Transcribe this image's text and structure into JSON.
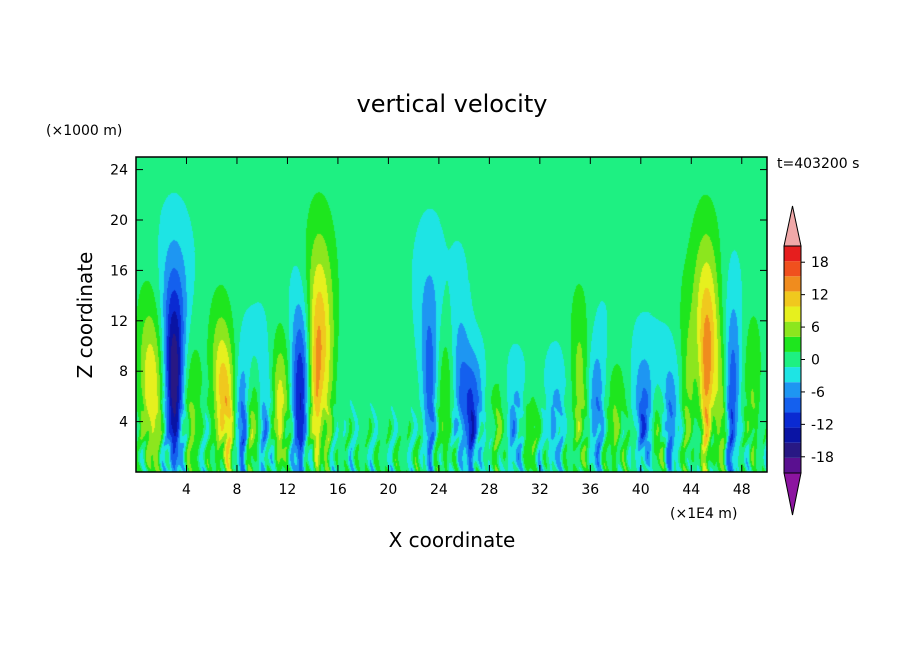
{
  "chart_data": {
    "type": "heatmap",
    "title": "vertical velocity",
    "xlabel": "X coordinate",
    "ylabel": "Z coordinate",
    "x_units": "(×1E4 m)",
    "y_units": "(×1000 m)",
    "time_label": "t=403200 s",
    "xlim": [
      0,
      50
    ],
    "ylim": [
      0,
      25
    ],
    "x_ticks": [
      4,
      8,
      12,
      16,
      20,
      24,
      28,
      32,
      36,
      40,
      44,
      48
    ],
    "y_ticks": [
      4,
      8,
      12,
      16,
      20,
      24
    ],
    "colorbar": {
      "levels": [
        -21,
        -18,
        -15,
        -12,
        -9,
        -6,
        -3,
        0,
        3,
        6,
        9,
        12,
        15,
        18,
        21
      ],
      "tick_values": [
        -18,
        -12,
        -6,
        0,
        6,
        12,
        18
      ],
      "colors": [
        "#5a1090",
        "#281884",
        "#0a14a4",
        "#0a2ad2",
        "#1460ee",
        "#1e96f2",
        "#1ee4e4",
        "#1ef082",
        "#1ee61e",
        "#8ce61e",
        "#e6f01e",
        "#f0c81e",
        "#f08c1e",
        "#f0501e",
        "#e61e1e"
      ],
      "under_color": "#8c14a0",
      "over_color": "#f0a8a8"
    },
    "background_value": 1,
    "features": [
      {
        "x": 0.8,
        "z_top": 18,
        "amp": 6
      },
      {
        "x": 1.5,
        "z_top": 16,
        "amp": 8
      },
      {
        "x": 2.8,
        "z_top": 21,
        "amp": -9
      },
      {
        "x": 3.2,
        "z_top": 20,
        "amp": -12
      },
      {
        "x": 4.5,
        "z_top": 14,
        "amp": 5
      },
      {
        "x": 6.6,
        "z_top": 18,
        "amp": 7
      },
      {
        "x": 7.3,
        "z_top": 14,
        "amp": 11
      },
      {
        "x": 8.5,
        "z_top": 14,
        "amp": -10
      },
      {
        "x": 9.2,
        "z_top": 12,
        "amp": 8
      },
      {
        "x": 10.2,
        "z_top": 16,
        "amp": -6
      },
      {
        "x": 11.4,
        "z_top": 14,
        "amp": 10
      },
      {
        "x": 13.0,
        "z_top": 18,
        "amp": -13
      },
      {
        "x": 14.3,
        "z_top": 23,
        "amp": 14
      },
      {
        "x": 15.2,
        "z_top": 22,
        "amp": 7
      },
      {
        "x": 23.3,
        "z_top": 21,
        "amp": -9
      },
      {
        "x": 24.5,
        "z_top": 16,
        "amp": 5
      },
      {
        "x": 25.6,
        "z_top": 21,
        "amp": -5
      },
      {
        "x": 26.6,
        "z_top": 12,
        "amp": -12
      },
      {
        "x": 28.8,
        "z_top": 10,
        "amp": 5
      },
      {
        "x": 30.0,
        "z_top": 12,
        "amp": -6
      },
      {
        "x": 31.2,
        "z_top": 8,
        "amp": 5
      },
      {
        "x": 33.2,
        "z_top": 12,
        "amp": -5
      },
      {
        "x": 35.2,
        "z_top": 19,
        "amp": 7
      },
      {
        "x": 36.5,
        "z_top": 14,
        "amp": -7
      },
      {
        "x": 38.0,
        "z_top": 12,
        "amp": 5
      },
      {
        "x": 40.3,
        "z_top": 12,
        "amp": -10
      },
      {
        "x": 41.5,
        "z_top": 10,
        "amp": 6
      },
      {
        "x": 42.2,
        "z_top": 12,
        "amp": -9
      },
      {
        "x": 43.8,
        "z_top": 20,
        "amp": 6
      },
      {
        "x": 45.2,
        "z_top": 23,
        "amp": 15
      },
      {
        "x": 46.3,
        "z_top": 18,
        "amp": 8
      },
      {
        "x": 47.2,
        "z_top": 20,
        "amp": -10
      },
      {
        "x": 48.8,
        "z_top": 16,
        "amp": 5
      }
    ]
  }
}
